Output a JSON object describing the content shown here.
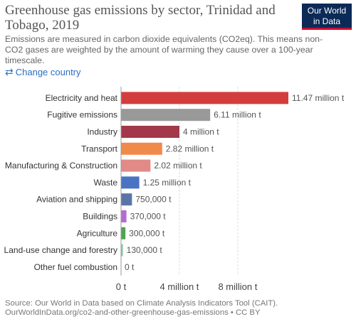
{
  "header": {
    "title": "Greenhouse gas emissions by sector, Trinidad and Tobago, 2019",
    "subtitle": "Emissions are measured in carbon dioxide equivalents (CO2eq). This means non-CO2 gases are weighted by the amount of warming they cause over a 100-year timescale.",
    "logo_line1": "Our World",
    "logo_line2": "in Data",
    "logo_bg": "#0b2a57",
    "logo_accent": "#c8102e"
  },
  "controls": {
    "change_country_icon": "swap-arrows-icon",
    "change_country_label": "Change country"
  },
  "chart_data": {
    "type": "bar",
    "orientation": "horizontal",
    "categories": [
      "Electricity and heat",
      "Fugitive emissions",
      "Industry",
      "Transport",
      "Manufacturing & Construction",
      "Waste",
      "Aviation and shipping",
      "Buildings",
      "Agriculture",
      "Land-use change and forestry",
      "Other fuel combustion"
    ],
    "values": [
      11470000,
      6110000,
      4000000,
      2820000,
      2020000,
      1250000,
      750000,
      370000,
      300000,
      130000,
      0
    ],
    "value_labels": [
      "11.47 million t",
      "6.11 million t",
      "4 million t",
      "2.82 million t",
      "2.02 million t",
      "1.25 million t",
      "750,000 t",
      "370,000 t",
      "300,000 t",
      "130,000 t",
      "0 t"
    ],
    "colors": [
      "#d43d3d",
      "#999999",
      "#a2384a",
      "#f08a4b",
      "#e18a86",
      "#4a73c4",
      "#5b74a8",
      "#b66bd2",
      "#4fa352",
      "#8ccfa5",
      "#cccccc"
    ],
    "x_ticks": [
      0,
      4000000,
      8000000
    ],
    "x_tick_labels": [
      "0 t",
      "4 million t",
      "8 million t"
    ],
    "xlim": [
      0,
      11470000
    ],
    "grid": true
  },
  "footer": {
    "source_line1": "Source: Our World in Data based on Climate Analysis Indicators Tool (CAIT).",
    "source_line2": "OurWorldInData.org/co2-and-other-greenhouse-gas-emissions • CC BY"
  }
}
